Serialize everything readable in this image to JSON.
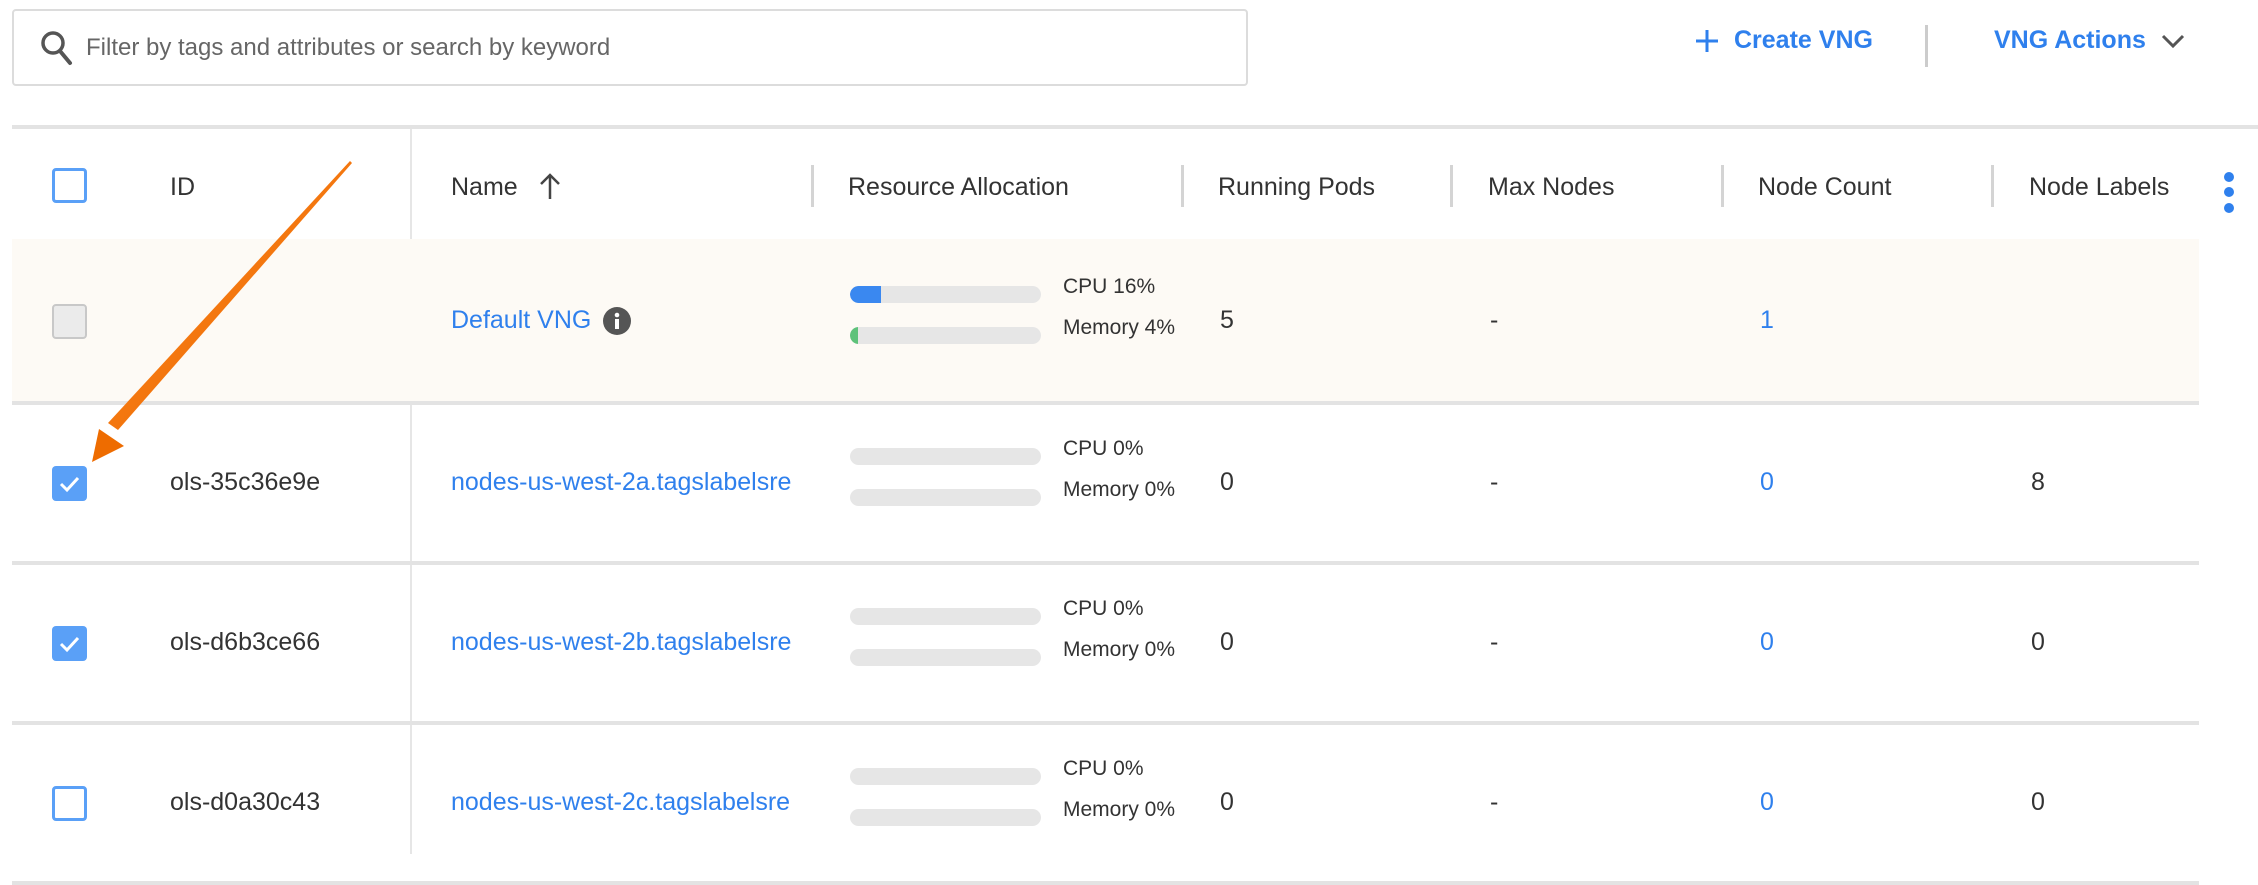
{
  "toolbar": {
    "search_placeholder": "Filter by tags and attributes or search by keyword",
    "create_label": "Create VNG",
    "actions_label": "VNG Actions"
  },
  "colors": {
    "accent": "#2f80ed",
    "cpu_bar": "#3a88f0",
    "memory_bar": "#5ec27a",
    "default_row_bg": "#fdfaf5",
    "annotation_arrow": "#f07000"
  },
  "table": {
    "headers": {
      "id": "ID",
      "name": "Name",
      "resource": "Resource Allocation",
      "pods": "Running Pods",
      "max": "Max Nodes",
      "count": "Node Count",
      "labels": "Node Labels"
    },
    "sort": {
      "column": "Name",
      "direction": "ascending"
    },
    "rows": [
      {
        "checked": false,
        "disabled": true,
        "id": "",
        "name": "Default VNG",
        "info_icon": true,
        "cpu_pct": 16,
        "cpu_label": "CPU 16%",
        "mem_pct": 4,
        "mem_label": "Memory 4%",
        "pods": "5",
        "max": "-",
        "count": "1",
        "labels": ""
      },
      {
        "checked": true,
        "disabled": false,
        "id": "ols-35c36e9e",
        "name": "nodes-us-west-2a.tagslabelsre",
        "cpu_pct": 0,
        "cpu_label": "CPU 0%",
        "mem_pct": 0,
        "mem_label": "Memory 0%",
        "pods": "0",
        "max": "-",
        "count": "0",
        "labels": "8"
      },
      {
        "checked": true,
        "disabled": false,
        "id": "ols-d6b3ce66",
        "name": "nodes-us-west-2b.tagslabelsre",
        "cpu_pct": 0,
        "cpu_label": "CPU 0%",
        "mem_pct": 0,
        "mem_label": "Memory 0%",
        "pods": "0",
        "max": "-",
        "count": "0",
        "labels": "0"
      },
      {
        "checked": false,
        "disabled": false,
        "id": "ols-d0a30c43",
        "name": "nodes-us-west-2c.tagslabelsre",
        "cpu_pct": 0,
        "cpu_label": "CPU 0%",
        "mem_pct": 0,
        "mem_label": "Memory 0%",
        "pods": "0",
        "max": "-",
        "count": "0",
        "labels": "0"
      }
    ]
  }
}
